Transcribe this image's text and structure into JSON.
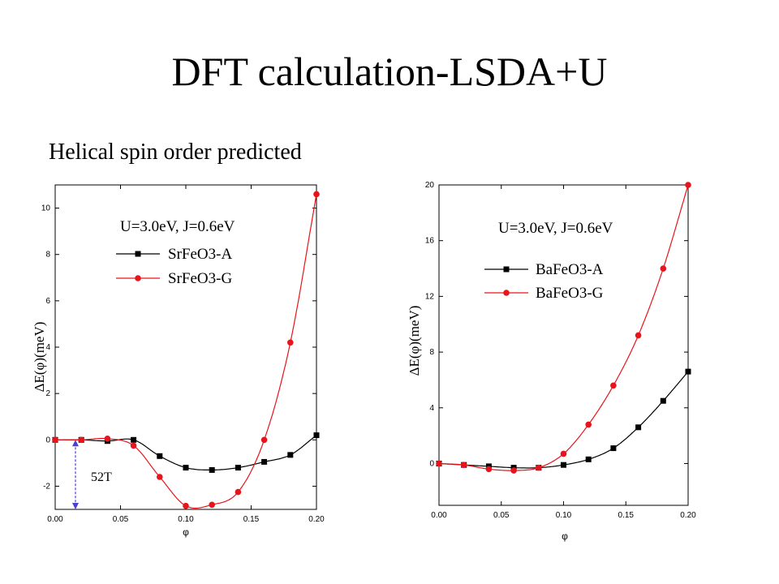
{
  "slide": {
    "title": "DFT calculation-LSDA+U",
    "subtitle": "Helical spin order predicted"
  },
  "chart_data": [
    {
      "type": "line",
      "xlabel": "φ",
      "ylabel": "ΔE(φ)(meV)",
      "xlim": [
        0.0,
        0.2
      ],
      "ylim": [
        -3.0,
        11.0
      ],
      "xticks": [
        "0.00",
        "0.05",
        "0.10",
        "0.15",
        "0.20"
      ],
      "yticks": [
        "-2",
        "0",
        "2",
        "4",
        "6",
        "8",
        "10"
      ],
      "legend_title": "U=3.0eV, J=0.6eV",
      "legend_position": "top-center",
      "annotation": "52T",
      "series": [
        {
          "name": "SrFeO3-A",
          "color": "#000000",
          "marker": "square",
          "x": [
            0.0,
            0.02,
            0.04,
            0.06,
            0.08,
            0.1,
            0.12,
            0.14,
            0.16,
            0.18,
            0.2
          ],
          "y": [
            0.0,
            0.0,
            -0.05,
            0.0,
            -0.7,
            -1.2,
            -1.3,
            -1.2,
            -0.95,
            -0.65,
            0.2
          ]
        },
        {
          "name": "SrFeO3-G",
          "color": "#e8141b",
          "marker": "circle",
          "x": [
            0.0,
            0.02,
            0.04,
            0.06,
            0.08,
            0.1,
            0.12,
            0.14,
            0.16,
            0.18,
            0.2
          ],
          "y": [
            0.0,
            0.0,
            0.05,
            -0.25,
            -1.6,
            -2.85,
            -2.8,
            -2.25,
            0.0,
            4.2,
            10.6
          ]
        }
      ]
    },
    {
      "type": "line",
      "xlabel": "φ",
      "ylabel": "ΔE(φ)(meV)",
      "xlim": [
        0.0,
        0.2
      ],
      "ylim": [
        -3.0,
        20.0
      ],
      "xticks": [
        "0.00",
        "0.05",
        "0.10",
        "0.15",
        "0.20"
      ],
      "yticks": [
        "0",
        "4",
        "8",
        "12",
        "16",
        "20"
      ],
      "legend_title": "U=3.0eV, J=0.6eV",
      "legend_position": "top-center",
      "series": [
        {
          "name": "BaFeO3-A",
          "color": "#000000",
          "marker": "square",
          "x": [
            0.0,
            0.02,
            0.04,
            0.06,
            0.08,
            0.1,
            0.12,
            0.14,
            0.16,
            0.18,
            0.2
          ],
          "y": [
            0.0,
            -0.1,
            -0.2,
            -0.3,
            -0.3,
            -0.1,
            0.3,
            1.1,
            2.6,
            4.5,
            6.6
          ]
        },
        {
          "name": "BaFeO3-G",
          "color": "#e8141b",
          "marker": "circle",
          "x": [
            0.0,
            0.02,
            0.04,
            0.06,
            0.08,
            0.1,
            0.12,
            0.14,
            0.16,
            0.18,
            0.2
          ],
          "y": [
            0.0,
            -0.1,
            -0.4,
            -0.5,
            -0.3,
            0.7,
            2.8,
            5.6,
            9.2,
            14.0,
            20.0
          ]
        }
      ]
    }
  ]
}
